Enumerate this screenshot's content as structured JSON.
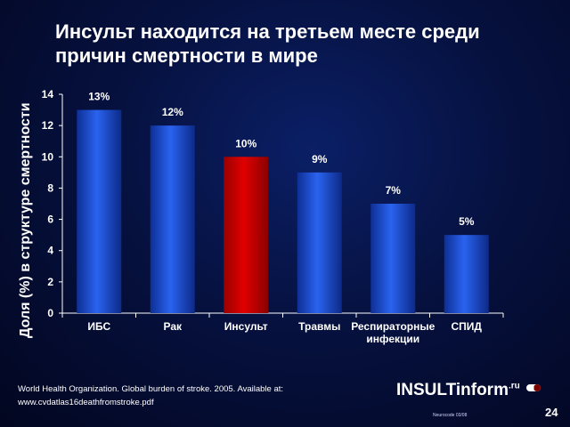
{
  "slide": {
    "title": "Инсульт находится на третьем месте среди причин смертности в мире",
    "source_line1": "World  Health Organization. Global burden of stroke. 2005. Available at:",
    "source_line2": "www.cvdatlas16deathfromstroke.pdf",
    "logo_text": "INSULTinform",
    "logo_suffix": ".ru",
    "code": "Neurocode 03/08",
    "page_number": "24"
  },
  "colors": {
    "background": "#06113f",
    "bar_blue": "#1a4fd6",
    "bar_highlight": "#d40000",
    "text": "#ffffff"
  },
  "chart_data": {
    "type": "bar",
    "title": "Инсульт находится на третьем месте среди причин смертности в мире",
    "ylabel": "Доля (%) в структуре смертности",
    "xlabel": "",
    "ylim": [
      0,
      14
    ],
    "yticks": [
      "0",
      "2",
      "4",
      "6",
      "8",
      "10",
      "12",
      "14"
    ],
    "categories": [
      [
        "ИБС"
      ],
      [
        "Рак"
      ],
      [
        "Инсульт"
      ],
      [
        "Травмы"
      ],
      [
        "Респираторные",
        "инфекции"
      ],
      [
        "СПИД"
      ]
    ],
    "values": [
      13,
      12,
      10,
      9,
      7,
      5
    ],
    "data_labels": [
      "13%",
      "12%",
      "10%",
      "9%",
      "7%",
      "5%"
    ],
    "highlight_index": 2,
    "grid": false,
    "legend": false
  }
}
